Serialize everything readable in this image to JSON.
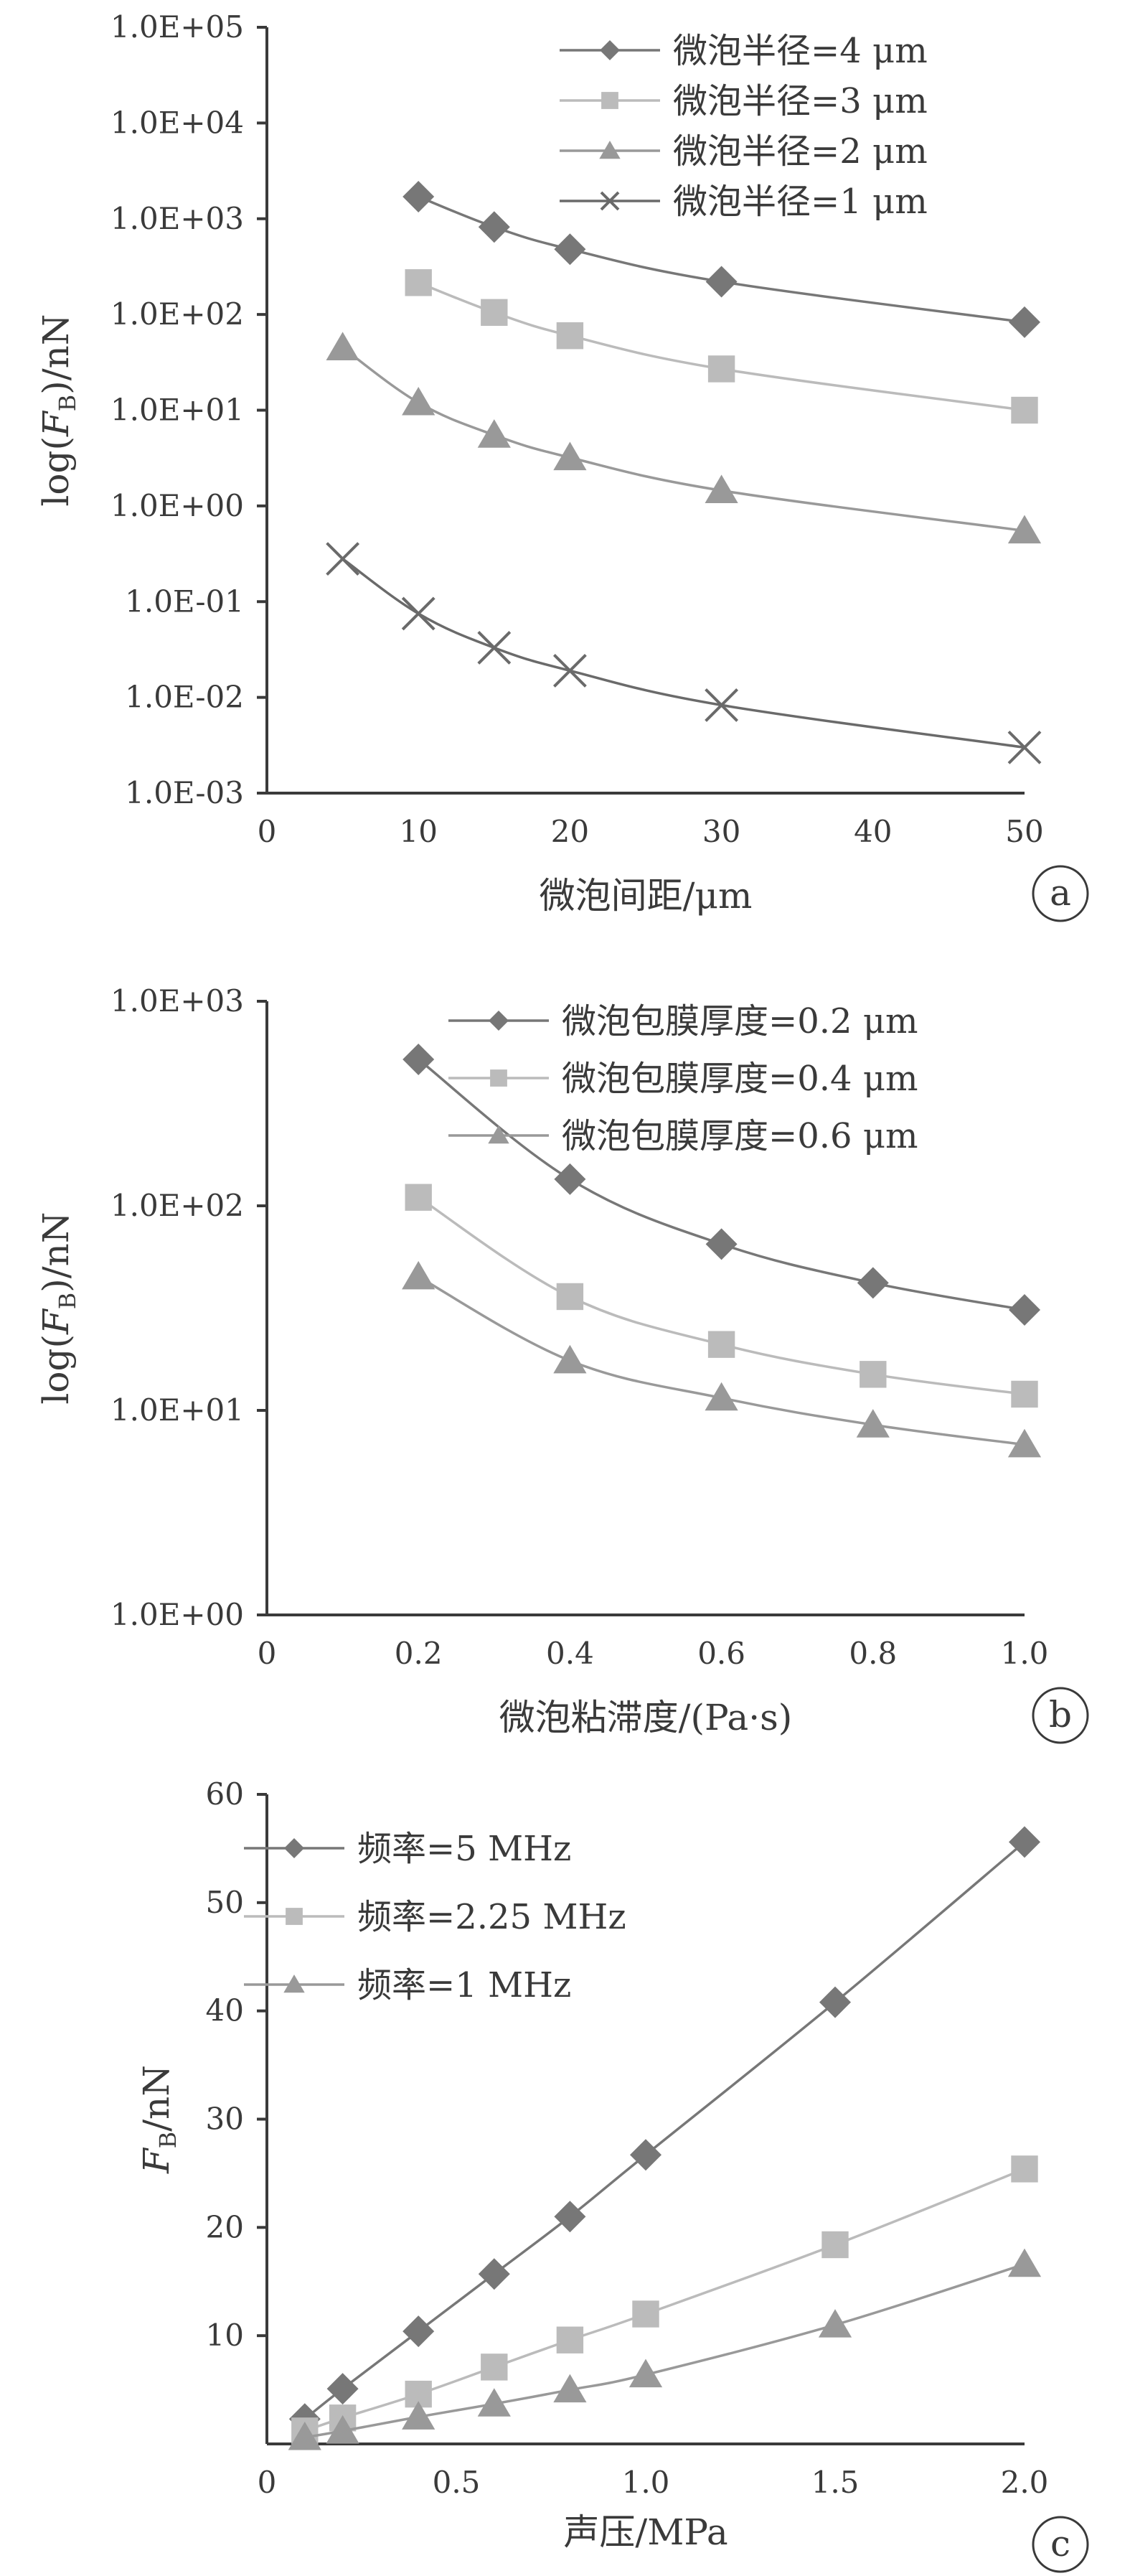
{
  "colors": {
    "axis": "#3a3a3a",
    "dark": "#777777",
    "light": "#bbbbbb",
    "mid": "#999999",
    "cross": "#6a6a6a"
  },
  "chart_data": [
    {
      "type": "line",
      "panel_label": "a",
      "xlabel": "微泡间距/μm",
      "ylabel": "log(FB)/nN",
      "ylabel_parts": {
        "prefix": "log(",
        "main": "F",
        "sub": "B",
        "suffix": ")/nN"
      },
      "xlim": [
        0,
        50
      ],
      "ylim": [
        0.001,
        100000
      ],
      "yscale": "log",
      "xticks": [
        0,
        10,
        20,
        30,
        40,
        50
      ],
      "xtick_labels": [
        "0",
        "10",
        "20",
        "30",
        "40",
        "50"
      ],
      "yticks": [
        0.001,
        0.01,
        0.1,
        1,
        10,
        100,
        1000,
        10000,
        100000
      ],
      "ytick_labels": [
        "1.0E-03",
        "1.0E-02",
        "1.0E-01",
        "1.0E+00",
        "1.0E+01",
        "1.0E+02",
        "1.0E+03",
        "1.0E+04",
        "1.0E+05"
      ],
      "grid": false,
      "legend_position": "top-right",
      "series": [
        {
          "name": "微泡半径=4 μm",
          "marker": "diamond",
          "color": "dark",
          "x": [
            10,
            15,
            20,
            30,
            50
          ],
          "y": [
            1700,
            820,
            480,
            220,
            83
          ]
        },
        {
          "name": "微泡半径=3 μm",
          "marker": "square",
          "color": "light",
          "x": [
            10,
            15,
            20,
            30,
            50
          ],
          "y": [
            215,
            105,
            60,
            27,
            10
          ]
        },
        {
          "name": "微泡半径=2 μm",
          "marker": "triangle",
          "color": "mid",
          "x": [
            5,
            10,
            15,
            20,
            30,
            50
          ],
          "y": [
            45,
            12,
            5.5,
            3.2,
            1.45,
            0.55
          ]
        },
        {
          "name": "微泡半径=1 μm",
          "marker": "cross",
          "color": "cross",
          "x": [
            5,
            10,
            15,
            20,
            30,
            50
          ],
          "y": [
            0.28,
            0.075,
            0.033,
            0.019,
            0.0083,
            0.003
          ]
        }
      ]
    },
    {
      "type": "line",
      "panel_label": "b",
      "xlabel": "微泡粘滞度/(Pa·s)",
      "ylabel": "log(FB)/nN",
      "ylabel_parts": {
        "prefix": "log(",
        "main": "F",
        "sub": "B",
        "suffix": ")/nN"
      },
      "xlim": [
        0,
        1.0
      ],
      "ylim": [
        1,
        1000
      ],
      "yscale": "log",
      "xticks": [
        0,
        0.2,
        0.4,
        0.6,
        0.8,
        1.0
      ],
      "xtick_labels": [
        "0",
        "0.2",
        "0.4",
        "0.6",
        "0.8",
        "1.0"
      ],
      "yticks": [
        1,
        10,
        100,
        1000
      ],
      "ytick_labels": [
        "1.0E+00",
        "1.0E+01",
        "1.0E+02",
        "1.0E+03"
      ],
      "grid": false,
      "legend_position": "top-right",
      "series": [
        {
          "name": "微泡包膜厚度=0.2 μm",
          "marker": "diamond",
          "color": "dark",
          "x": [
            0.2,
            0.4,
            0.6,
            0.8,
            1.0
          ],
          "y": [
            520,
            135,
            65,
            42,
            31
          ]
        },
        {
          "name": "微泡包膜厚度=0.4 μm",
          "marker": "square",
          "color": "light",
          "x": [
            0.2,
            0.4,
            0.6,
            0.8,
            1.0
          ],
          "y": [
            110,
            36,
            21,
            15,
            12
          ]
        },
        {
          "name": "微泡包膜厚度=0.6 μm",
          "marker": "triangle",
          "color": "mid",
          "x": [
            0.2,
            0.4,
            0.6,
            0.8,
            1.0
          ],
          "y": [
            45,
            17.5,
            11.5,
            8.5,
            6.8
          ]
        }
      ]
    },
    {
      "type": "line",
      "panel_label": "c",
      "xlabel": "声压/MPa",
      "ylabel": "FB/nN",
      "ylabel_parts": {
        "prefix": "",
        "main": "F",
        "sub": "B",
        "suffix": "/nN"
      },
      "xlim": [
        0,
        2.0
      ],
      "ylim": [
        0,
        60
      ],
      "yscale": "linear",
      "xticks": [
        0,
        0.5,
        1.0,
        1.5,
        2.0
      ],
      "xtick_labels": [
        "0",
        "0.5",
        "1.0",
        "1.5",
        "2.0"
      ],
      "yticks": [
        10,
        20,
        30,
        40,
        50,
        60
      ],
      "ytick_labels": [
        "10",
        "20",
        "30",
        "40",
        "50",
        "60"
      ],
      "grid": false,
      "legend_position": "top-left",
      "series": [
        {
          "name": "频率=5 MHz",
          "marker": "diamond",
          "color": "dark",
          "x": [
            0.1,
            0.2,
            0.4,
            0.6,
            0.8,
            1.0,
            1.5,
            2.0
          ],
          "y": [
            2.3,
            5.1,
            10.4,
            15.7,
            21.0,
            26.7,
            40.8,
            55.6
          ]
        },
        {
          "name": "频率=2.25 MHz",
          "marker": "square",
          "color": "light",
          "x": [
            0.1,
            0.2,
            0.4,
            0.6,
            0.8,
            1.0,
            1.5,
            2.0
          ],
          "y": [
            1.2,
            2.4,
            4.6,
            7.1,
            9.6,
            12.0,
            18.4,
            25.4
          ]
        },
        {
          "name": "频率=1 MHz",
          "marker": "triangle",
          "color": "mid",
          "x": [
            0.1,
            0.2,
            0.4,
            0.6,
            0.8,
            1.0,
            1.5,
            2.0
          ],
          "y": [
            0.6,
            1.2,
            2.5,
            3.7,
            5.0,
            6.4,
            11.0,
            16.6
          ]
        }
      ]
    }
  ]
}
